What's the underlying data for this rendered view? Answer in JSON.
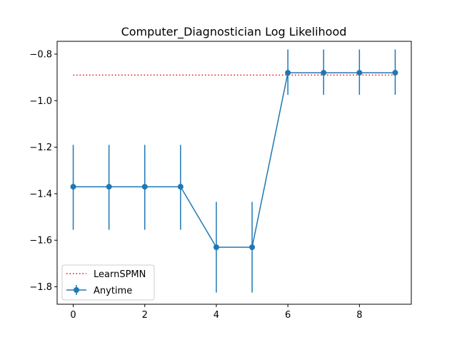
{
  "chart_data": {
    "type": "line",
    "title": "Computer_Diagnostician Log Likelihood",
    "xlabel": "",
    "ylabel": "",
    "xlim": [
      -0.45,
      9.45
    ],
    "ylim": [
      -1.875,
      -0.745
    ],
    "xticks": [
      0,
      2,
      4,
      6,
      8
    ],
    "yticks": [
      -1.8,
      -1.6,
      -1.4,
      -1.2,
      -1.0,
      -0.8
    ],
    "ytick_labels": [
      "−1.8",
      "−1.6",
      "−1.4",
      "−1.2",
      "−1.0",
      "−0.8"
    ],
    "grid": false,
    "legend_position": "lower-left",
    "series": [
      {
        "name": "Anytime",
        "style": "line-with-errorbars",
        "color": "#1f77b4",
        "x": [
          0,
          1,
          2,
          3,
          4,
          5,
          6,
          7,
          8,
          9
        ],
        "y": [
          -1.37,
          -1.37,
          -1.37,
          -1.37,
          -1.63,
          -1.63,
          -0.88,
          -0.88,
          -0.88,
          -0.88
        ],
        "err_low": [
          -1.555,
          -1.555,
          -1.555,
          -1.555,
          -1.825,
          -1.825,
          -0.975,
          -0.975,
          -0.975,
          -0.975
        ],
        "err_high": [
          -1.19,
          -1.19,
          -1.19,
          -1.19,
          -1.435,
          -1.435,
          -0.78,
          -0.78,
          -0.78,
          -0.78
        ]
      },
      {
        "name": "LearnSPMN",
        "style": "dotted",
        "color": "#ff0000",
        "x": [
          0,
          9
        ],
        "y": [
          -0.89,
          -0.89
        ]
      }
    ]
  }
}
